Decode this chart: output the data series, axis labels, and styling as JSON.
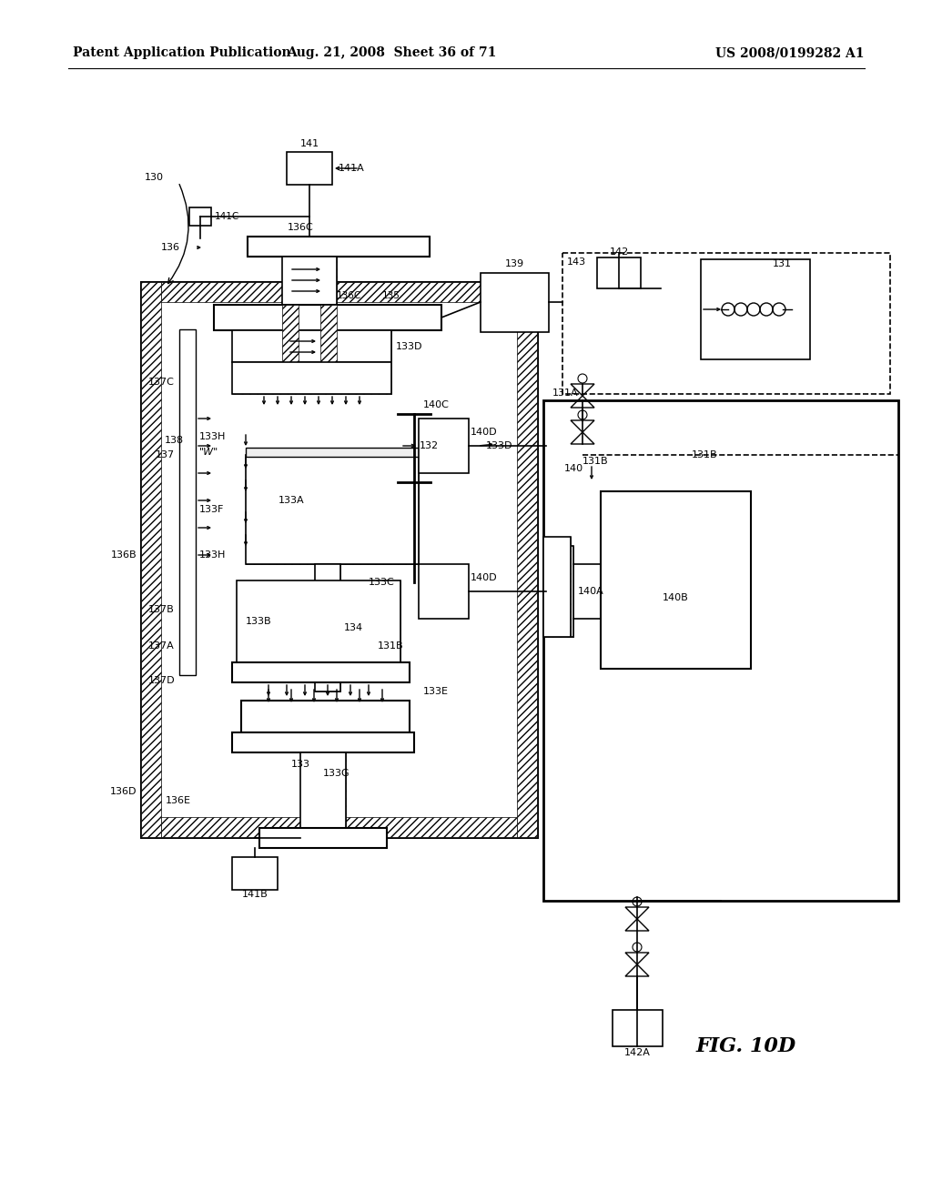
{
  "title_left": "Patent Application Publication",
  "title_mid": "Aug. 21, 2008  Sheet 36 of 71",
  "title_right": "US 2008/0199282 A1",
  "fig_label": "FIG. 10D",
  "bg_color": "#ffffff",
  "line_color": "#000000"
}
